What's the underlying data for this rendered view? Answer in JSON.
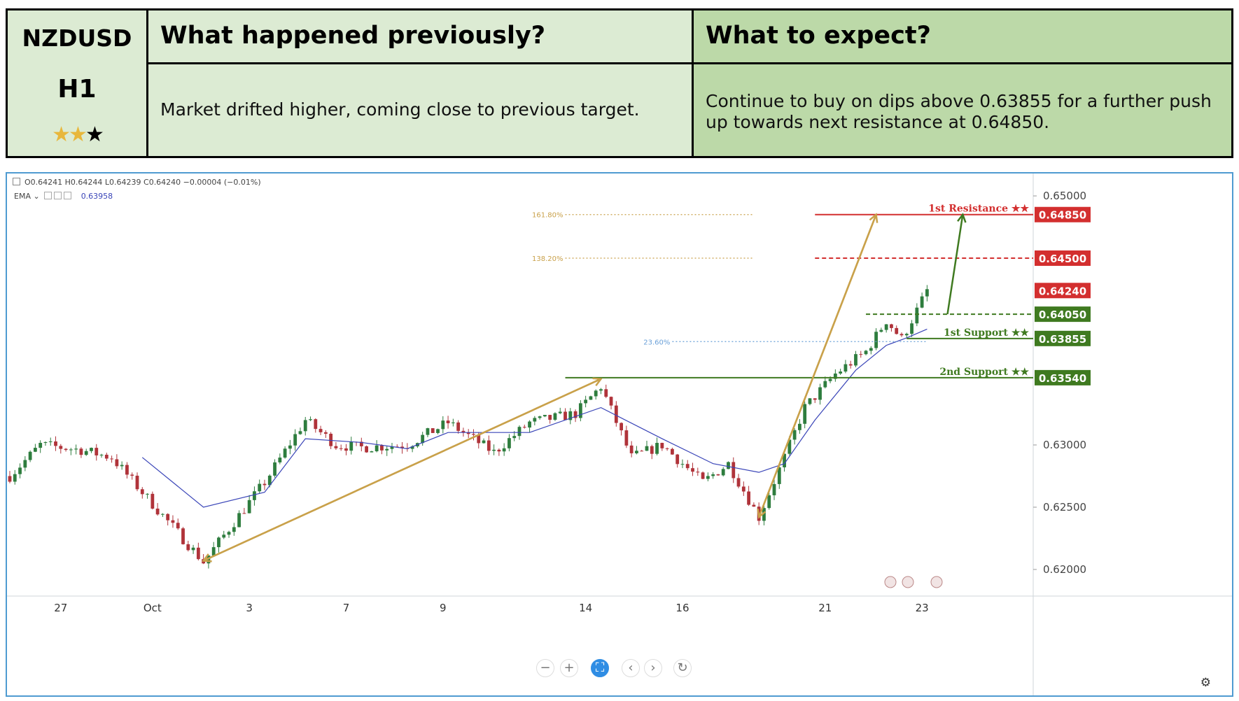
{
  "header": {
    "symbol": "NZDUSD",
    "timeframe": "H1",
    "rating": {
      "value": 2,
      "max": 3
    },
    "previous_title": "What happened previously?",
    "previous_text": "Market drifted higher, coming close to previous target.",
    "expect_title": "What to expect?",
    "expect_text": "Continue to buy on dips above 0.63855 for a further push up towards next resistance at 0.64850."
  },
  "legend": {
    "ohlc": "O0.64241  H0.64244  L0.64239  C0.64240  −0.00004 (−0.01%)",
    "ema_label": "EMA ⌄",
    "ema_value": "0.63958"
  },
  "colors": {
    "up": "#2e7d3e",
    "down": "#b0333a",
    "ema": "#3a45b8",
    "resistance": "#d32f2f",
    "support": "#3f7a20",
    "fib": "#c9a14a",
    "accent": "#2f8de4"
  },
  "chart_data": {
    "type": "candlestick",
    "ylim": [
      0.6182,
      0.6518
    ],
    "y_ticks": [
      "0.65000",
      "0.63000",
      "0.62500",
      "0.62000"
    ],
    "x_ticks": [
      "27",
      "Oct",
      "3",
      "7",
      "9",
      "14",
      "16",
      "21",
      "23"
    ],
    "anchors": [
      {
        "label": "Oct",
        "x": 26,
        "y": 0.6262
      },
      {
        "label": "",
        "x": 38,
        "y": 0.6206
      },
      {
        "label": "",
        "x": 50,
        "y": 0.627
      },
      {
        "label": "",
        "x": 58,
        "y": 0.632
      },
      {
        "label": "",
        "x": 64,
        "y": 0.63
      },
      {
        "label": "",
        "x": 69,
        "y": 0.6298
      },
      {
        "label": "",
        "x": 78,
        "y": 0.63
      },
      {
        "label": "",
        "x": 86,
        "y": 0.6318
      },
      {
        "label": "",
        "x": 95,
        "y": 0.6294
      },
      {
        "label": "",
        "x": 102,
        "y": 0.6318
      },
      {
        "label": "",
        "x": 111,
        "y": 0.6325
      },
      {
        "label": "",
        "x": 116,
        "y": 0.6347
      },
      {
        "label": "",
        "x": 122,
        "y": 0.629
      },
      {
        "label": "",
        "x": 128,
        "y": 0.63
      },
      {
        "label": "",
        "x": 136,
        "y": 0.627
      },
      {
        "label": "",
        "x": 141,
        "y": 0.6285
      },
      {
        "label": "",
        "x": 147,
        "y": 0.6242
      },
      {
        "label": "",
        "x": 152,
        "y": 0.629
      },
      {
        "label": "",
        "x": 156,
        "y": 0.633
      },
      {
        "label": "",
        "x": 162,
        "y": 0.6357
      },
      {
        "label": "",
        "x": 168,
        "y": 0.6375
      },
      {
        "label": "",
        "x": 172,
        "y": 0.64
      },
      {
        "label": "",
        "x": 175,
        "y": 0.6385
      },
      {
        "label": "",
        "x": 178,
        "y": 0.6408
      },
      {
        "label": "",
        "x": 180,
        "y": 0.6424
      }
    ],
    "ema": [
      {
        "x": 26,
        "y": 0.629
      },
      {
        "x": 38,
        "y": 0.625
      },
      {
        "x": 50,
        "y": 0.6262
      },
      {
        "x": 58,
        "y": 0.6305
      },
      {
        "x": 69,
        "y": 0.6302
      },
      {
        "x": 78,
        "y": 0.6297
      },
      {
        "x": 86,
        "y": 0.631
      },
      {
        "x": 102,
        "y": 0.631
      },
      {
        "x": 116,
        "y": 0.633
      },
      {
        "x": 128,
        "y": 0.6305
      },
      {
        "x": 138,
        "y": 0.6285
      },
      {
        "x": 147,
        "y": 0.6278
      },
      {
        "x": 152,
        "y": 0.6285
      },
      {
        "x": 158,
        "y": 0.632
      },
      {
        "x": 166,
        "y": 0.636
      },
      {
        "x": 172,
        "y": 0.638
      },
      {
        "x": 176,
        "y": 0.6386
      },
      {
        "x": 180,
        "y": 0.6393
      }
    ],
    "levels": [
      {
        "price": "0.64850",
        "label": "1st Resistance ★★",
        "kind": "resistance"
      },
      {
        "price": "0.64500",
        "label": "",
        "kind": "resistance-dashed"
      },
      {
        "price": "0.64240",
        "label": "",
        "kind": "last"
      },
      {
        "price": "0.64050",
        "label": "",
        "kind": "support-dashed"
      },
      {
        "price": "0.63855",
        "label": "1st Support ★★",
        "kind": "support"
      },
      {
        "price": "0.63540",
        "label": "2nd Support ★★",
        "kind": "support"
      }
    ],
    "fibonacci": [
      {
        "label": "161.80%",
        "price": 0.6485
      },
      {
        "label": "138.20%",
        "price": 0.645
      },
      {
        "label": "23.60%",
        "price": 0.6383
      }
    ]
  }
}
